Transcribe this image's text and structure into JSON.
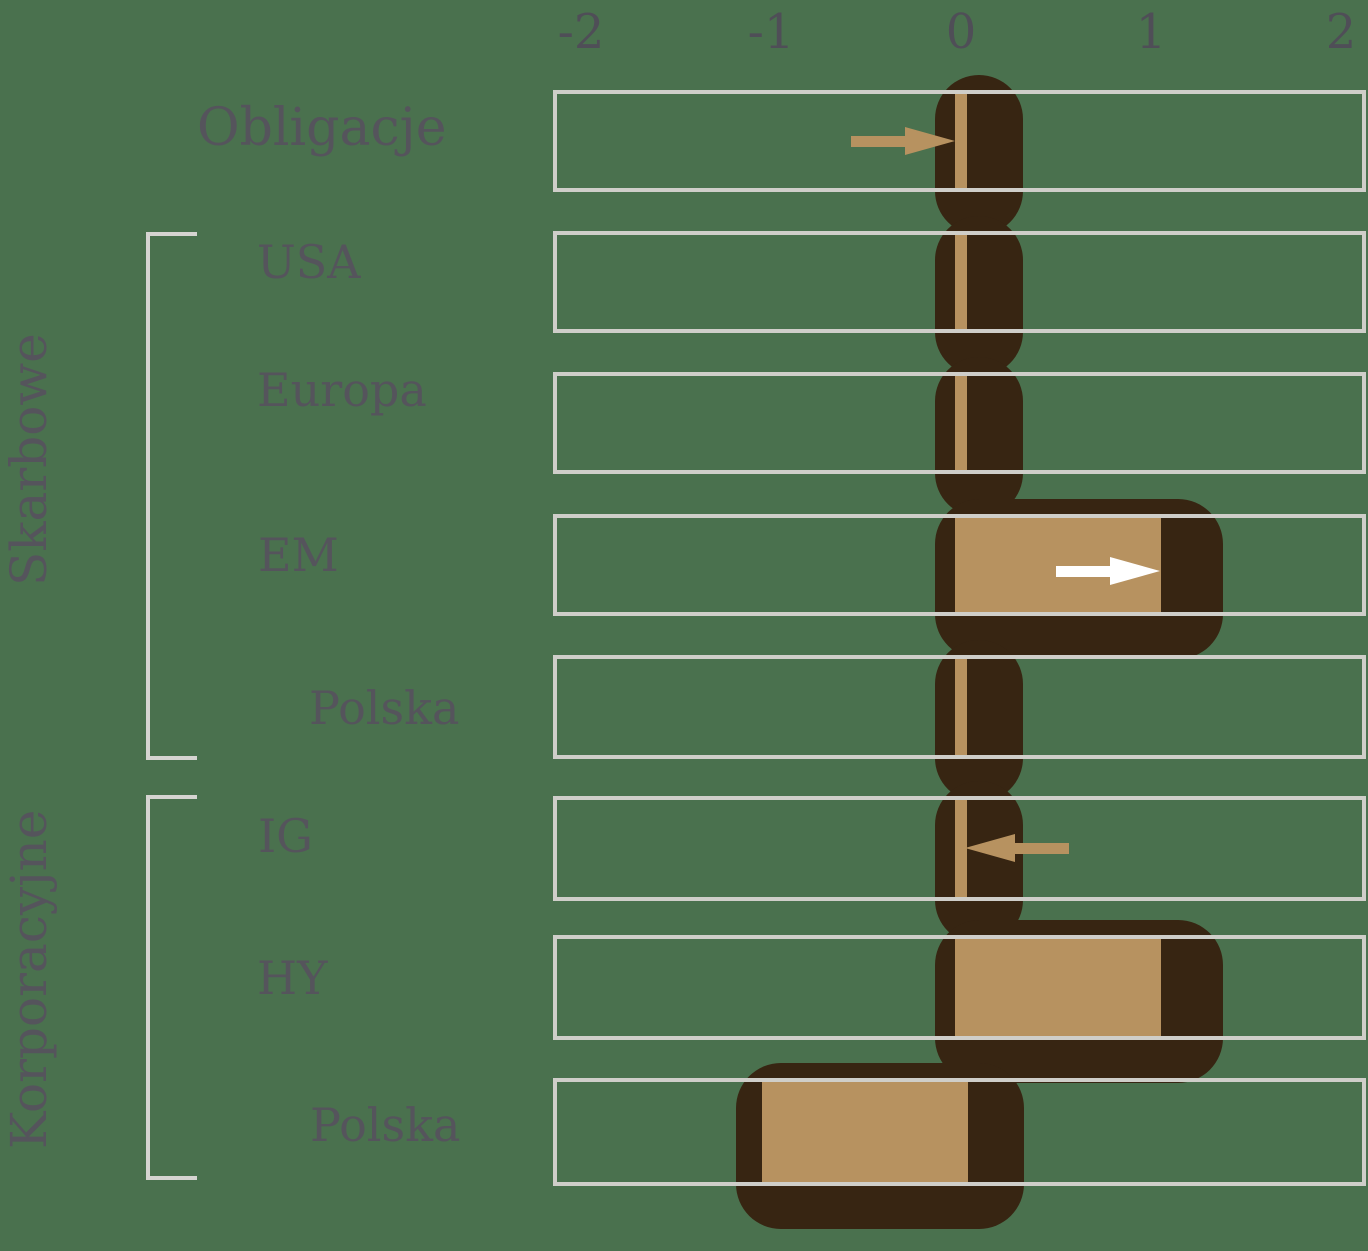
{
  "chart_data": {
    "type": "bar",
    "orientation": "horizontal",
    "title": "",
    "x_tick_labels": [
      "-2",
      "-1",
      "0",
      "1",
      "2"
    ],
    "x_ticks": [
      -2,
      -1,
      0,
      1,
      2
    ],
    "xlim": [
      -2.15,
      2.13
    ],
    "zero_line": true,
    "grid": "row-boxes",
    "categories": [
      "Obligacje",
      "USA",
      "Europa",
      "EM",
      "Polska",
      "IG",
      "HY",
      "Polska"
    ],
    "values": [
      0,
      0,
      0,
      1.05,
      0,
      0,
      1.05,
      -1.05
    ],
    "rows": [
      {
        "label": "Obligacje",
        "group": null,
        "value": 0,
        "arrow": {
          "direction": "right",
          "color_name": "tan",
          "meaning": "pointing-at-zero-from-left"
        }
      },
      {
        "label": "USA",
        "group": "Skarbowe",
        "value": 0,
        "arrow": null
      },
      {
        "label": "Europa",
        "group": "Skarbowe",
        "value": 0,
        "arrow": null
      },
      {
        "label": "EM",
        "group": "Skarbowe",
        "value": 1.05,
        "arrow": {
          "direction": "right",
          "color_name": "white",
          "meaning": "inside-bar-at-end"
        }
      },
      {
        "label": "Polska",
        "group": "Skarbowe",
        "value": 0,
        "arrow": null
      },
      {
        "label": "IG",
        "group": "Korporacyjne",
        "value": 0,
        "arrow": {
          "direction": "left",
          "color_name": "tan",
          "meaning": "pointing-at-zero-from-right"
        }
      },
      {
        "label": "HY",
        "group": "Korporacyjne",
        "value": 1.05,
        "arrow": null
      },
      {
        "label": "Polska",
        "group": "Korporacyjne",
        "value": -1.05,
        "arrow": null
      }
    ],
    "groups": [
      {
        "label": "Skarbowe",
        "first_row_index": 1,
        "last_row_index": 4
      },
      {
        "label": "Korporacyjne",
        "first_row_index": 5,
        "last_row_index": 7
      }
    ],
    "colors": {
      "background": "#4A714E",
      "bar_fill": "#B79260",
      "bar_shadow": "#372512",
      "zero_line": "#B79260",
      "grid_box": "#CFCEC9",
      "bracket": "#D6D4D1",
      "label_text": "#55545C",
      "tick_text": "#4F4E57",
      "arrow_tan": "#B79260",
      "arrow_white": "#FFFFFF"
    }
  }
}
